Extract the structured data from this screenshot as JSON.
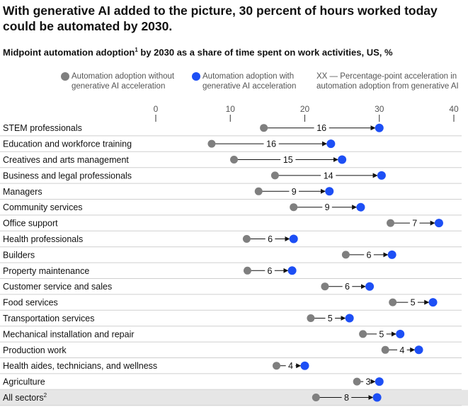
{
  "title": "With generative AI added to the picture, 30 percent of hours worked today could be automated by 2030.",
  "subtitle": "Midpoint automation adoption",
  "subtitle_sup": "1",
  "subtitle_rest": " by 2030 as a share of time spent on work activities, US, %",
  "legend": {
    "without": "Automation adoption without\ngenerative AI acceleration",
    "with": "Automation adoption with\ngenerative AI acceleration",
    "xx": "XX — Percentage-point acceleration in\nautomation adoption from generative AI"
  },
  "colors": {
    "without": "#7f7f7f",
    "with": "#1d4ff5",
    "highlight_row": "#e6e6e6",
    "arrow": "#111111"
  },
  "chart_data": {
    "type": "dumbbell",
    "xlim": [
      0,
      40
    ],
    "xticks": [
      0,
      10,
      20,
      30,
      40
    ],
    "series": [
      {
        "name": "Automation adoption without generative AI acceleration",
        "key": "without"
      },
      {
        "name": "Automation adoption with generative AI acceleration",
        "key": "with"
      }
    ],
    "rows": [
      {
        "label": "STEM professionals",
        "without": 14.5,
        "with": 30.0,
        "delta": "16"
      },
      {
        "label": "Education and workforce training",
        "without": 7.5,
        "with": 23.5,
        "delta": "16"
      },
      {
        "label": "Creatives and arts management",
        "without": 10.5,
        "with": 25.0,
        "delta": "15"
      },
      {
        "label": "Business and legal professionals",
        "without": 16.0,
        "with": 30.3,
        "delta": "14"
      },
      {
        "label": "Managers",
        "without": 13.8,
        "with": 23.3,
        "delta": "9"
      },
      {
        "label": "Community services",
        "without": 18.5,
        "with": 27.5,
        "delta": "9"
      },
      {
        "label": "Office support",
        "without": 31.5,
        "with": 38.0,
        "delta": "7"
      },
      {
        "label": "Health professionals",
        "without": 12.2,
        "with": 18.5,
        "delta": "6"
      },
      {
        "label": "Builders",
        "without": 25.5,
        "with": 31.7,
        "delta": "6"
      },
      {
        "label": "Property maintenance",
        "without": 12.3,
        "with": 18.3,
        "delta": "6"
      },
      {
        "label": "Customer service and sales",
        "without": 22.7,
        "with": 28.7,
        "delta": "6"
      },
      {
        "label": "Food services",
        "without": 31.8,
        "with": 37.2,
        "delta": "5"
      },
      {
        "label": "Transportation services",
        "without": 20.8,
        "with": 26.0,
        "delta": "5"
      },
      {
        "label": "Mechanical installation and repair",
        "without": 27.8,
        "with": 32.8,
        "delta": "5"
      },
      {
        "label": "Production work",
        "without": 30.8,
        "with": 35.3,
        "delta": "4"
      },
      {
        "label": "Health aides, technicians, and wellness",
        "without": 16.2,
        "with": 20.0,
        "delta": "4"
      },
      {
        "label": "Agriculture",
        "without": 27.0,
        "with": 30.0,
        "delta": "3"
      },
      {
        "label": "All sectors",
        "label_sup": "2",
        "without": 21.5,
        "with": 29.7,
        "delta": "8",
        "highlight": true
      }
    ]
  }
}
